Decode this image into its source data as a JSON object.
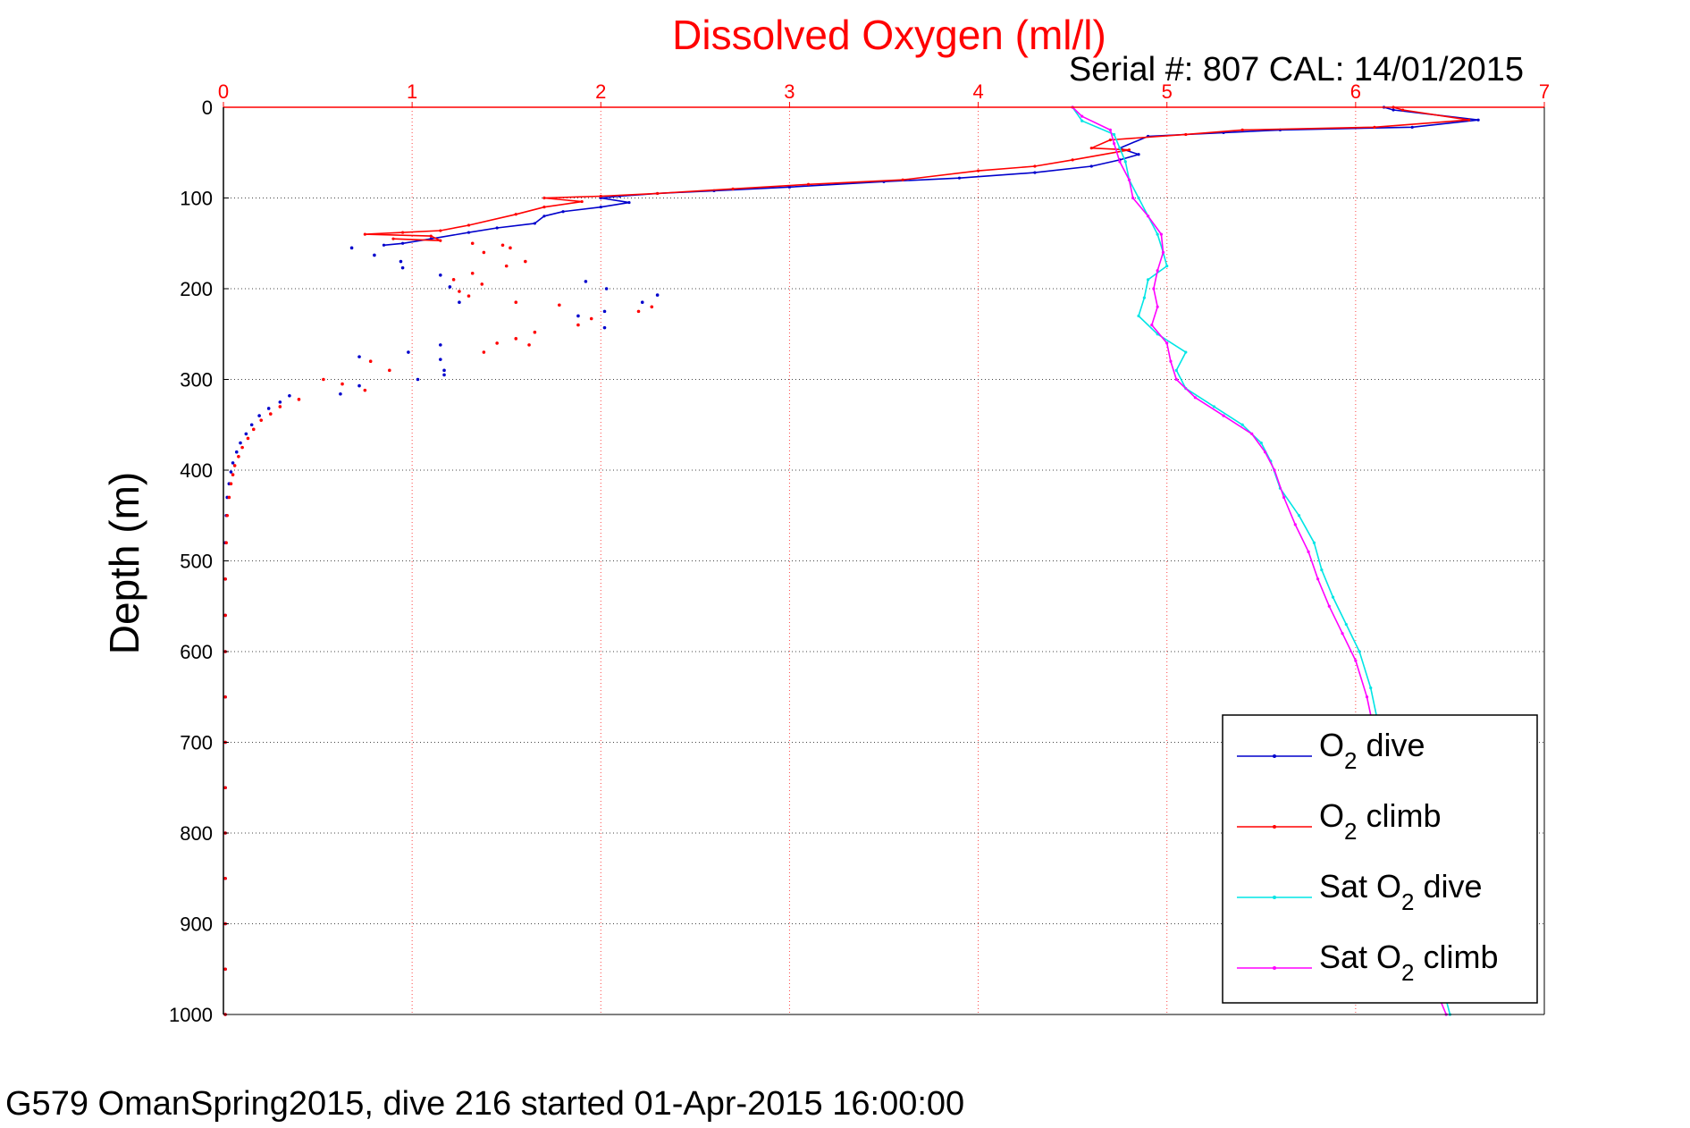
{
  "chart_data": {
    "type": "line",
    "title": "Dissolved Oxygen (ml/l)",
    "subtitle": "Serial #: 807  CAL: 14/01/2015",
    "ylabel": "Depth (m)",
    "footer": "G579 OmanSpring2015, dive 216 started 01-Apr-2015 16:00:00",
    "xlim": [
      0,
      7
    ],
    "ylim": [
      0,
      1000
    ],
    "y_reversed": true,
    "x_ticks": [
      "0",
      "1",
      "2",
      "3",
      "4",
      "5",
      "6",
      "7"
    ],
    "y_ticks": [
      "0",
      "100",
      "200",
      "300",
      "400",
      "500",
      "600",
      "700",
      "800",
      "900",
      "1000"
    ],
    "x_axis_position": "top",
    "grid": true,
    "legend_position": "bottom-right",
    "series": [
      {
        "name": "dive",
        "legend_prefix": "O",
        "legend_sub": "2",
        "color": "#0000cc",
        "points": [
          [
            6.15,
            0
          ],
          [
            6.2,
            3
          ],
          [
            6.65,
            14
          ],
          [
            6.3,
            22
          ],
          [
            5.6,
            25
          ],
          [
            5.3,
            28
          ],
          [
            4.9,
            32
          ],
          [
            4.75,
            45
          ],
          [
            4.85,
            52
          ],
          [
            4.75,
            58
          ],
          [
            4.6,
            65
          ],
          [
            4.3,
            72
          ],
          [
            3.9,
            78
          ],
          [
            3.5,
            82
          ],
          [
            3.0,
            88
          ],
          [
            2.6,
            92
          ],
          [
            2.3,
            95
          ],
          [
            2.1,
            98
          ],
          [
            2.0,
            100
          ],
          [
            2.15,
            105
          ],
          [
            2.0,
            110
          ],
          [
            1.8,
            115
          ],
          [
            1.7,
            120
          ],
          [
            1.65,
            128
          ],
          [
            1.45,
            133
          ],
          [
            1.3,
            138
          ],
          [
            1.1,
            145
          ],
          [
            0.95,
            150
          ],
          [
            0.85,
            152
          ]
        ],
        "scatter": [
          [
            0.68,
            155
          ],
          [
            0.8,
            163
          ],
          [
            0.94,
            170
          ],
          [
            0.95,
            177
          ],
          [
            1.15,
            185
          ],
          [
            1.2,
            198
          ],
          [
            1.25,
            215
          ],
          [
            1.92,
            192
          ],
          [
            2.03,
            200
          ],
          [
            2.3,
            207
          ],
          [
            2.22,
            215
          ],
          [
            2.02,
            225
          ],
          [
            1.88,
            230
          ],
          [
            2.02,
            243
          ],
          [
            1.15,
            262
          ],
          [
            0.98,
            270
          ],
          [
            1.15,
            278
          ],
          [
            0.72,
            275
          ],
          [
            1.17,
            290
          ],
          [
            1.17,
            295
          ],
          [
            1.03,
            300
          ],
          [
            0.72,
            307
          ],
          [
            0.62,
            316
          ],
          [
            0.35,
            318
          ],
          [
            0.3,
            325
          ],
          [
            0.24,
            332
          ],
          [
            0.19,
            340
          ],
          [
            0.15,
            350
          ],
          [
            0.12,
            360
          ],
          [
            0.09,
            370
          ],
          [
            0.07,
            380
          ],
          [
            0.05,
            392
          ],
          [
            0.04,
            402
          ],
          [
            0.03,
            415
          ],
          [
            0.02,
            430
          ],
          [
            0.015,
            450
          ],
          [
            0.01,
            480
          ],
          [
            0.01,
            520
          ],
          [
            0.01,
            560
          ],
          [
            0.01,
            600
          ],
          [
            0.01,
            650
          ],
          [
            0.01,
            700
          ],
          [
            0.01,
            750
          ],
          [
            0.01,
            800
          ],
          [
            0.01,
            850
          ],
          [
            0.01,
            900
          ],
          [
            0.01,
            950
          ],
          [
            0.01,
            1000
          ]
        ]
      },
      {
        "name": "climb",
        "legend_prefix": "O",
        "legend_sub": "2",
        "color": "#ff0000",
        "points": [
          [
            6.2,
            0
          ],
          [
            6.25,
            3
          ],
          [
            6.6,
            14
          ],
          [
            6.1,
            22
          ],
          [
            5.4,
            25
          ],
          [
            5.1,
            30
          ],
          [
            4.7,
            36
          ],
          [
            4.6,
            45
          ],
          [
            4.8,
            47
          ],
          [
            4.5,
            58
          ],
          [
            4.3,
            65
          ],
          [
            4.0,
            70
          ],
          [
            3.6,
            80
          ],
          [
            3.1,
            85
          ],
          [
            2.7,
            90
          ],
          [
            2.3,
            95
          ],
          [
            2.0,
            98
          ],
          [
            1.7,
            100
          ],
          [
            1.9,
            104
          ],
          [
            1.7,
            110
          ],
          [
            1.55,
            118
          ],
          [
            1.3,
            130
          ],
          [
            1.15,
            136
          ],
          [
            0.95,
            138
          ],
          [
            0.75,
            140
          ],
          [
            1.1,
            142
          ],
          [
            1.15,
            147
          ],
          [
            0.9,
            145
          ]
        ],
        "scatter": [
          [
            1.32,
            150
          ],
          [
            1.48,
            152
          ],
          [
            1.38,
            160
          ],
          [
            1.52,
            155
          ],
          [
            1.6,
            170
          ],
          [
            1.5,
            175
          ],
          [
            1.32,
            183
          ],
          [
            1.22,
            190
          ],
          [
            1.37,
            195
          ],
          [
            1.25,
            203
          ],
          [
            1.3,
            208
          ],
          [
            1.55,
            215
          ],
          [
            1.78,
            218
          ],
          [
            2.27,
            220
          ],
          [
            2.2,
            225
          ],
          [
            1.95,
            233
          ],
          [
            1.88,
            240
          ],
          [
            1.65,
            248
          ],
          [
            1.55,
            255
          ],
          [
            1.45,
            260
          ],
          [
            1.62,
            262
          ],
          [
            1.38,
            270
          ],
          [
            0.78,
            280
          ],
          [
            0.88,
            290
          ],
          [
            0.53,
            300
          ],
          [
            0.63,
            305
          ],
          [
            0.75,
            312
          ],
          [
            0.4,
            322
          ],
          [
            0.3,
            330
          ],
          [
            0.25,
            338
          ],
          [
            0.2,
            345
          ],
          [
            0.16,
            355
          ],
          [
            0.13,
            365
          ],
          [
            0.1,
            375
          ],
          [
            0.08,
            385
          ],
          [
            0.06,
            395
          ],
          [
            0.05,
            405
          ],
          [
            0.04,
            415
          ],
          [
            0.03,
            430
          ],
          [
            0.02,
            450
          ],
          [
            0.015,
            480
          ],
          [
            0.01,
            520
          ],
          [
            0.01,
            560
          ],
          [
            0.01,
            600
          ],
          [
            0.01,
            650
          ],
          [
            0.01,
            700
          ],
          [
            0.01,
            750
          ],
          [
            0.01,
            800
          ],
          [
            0.01,
            850
          ],
          [
            0.01,
            900
          ],
          [
            0.01,
            950
          ],
          [
            0.01,
            1000
          ]
        ]
      },
      {
        "name": "dive",
        "legend_prefix": "Sat O",
        "legend_sub": "2",
        "color": "#00e5e5",
        "points": [
          [
            4.5,
            0
          ],
          [
            4.55,
            15
          ],
          [
            4.72,
            30
          ],
          [
            4.75,
            45
          ],
          [
            4.78,
            60
          ],
          [
            4.8,
            80
          ],
          [
            4.85,
            100
          ],
          [
            4.9,
            120
          ],
          [
            4.95,
            140
          ],
          [
            4.98,
            160
          ],
          [
            5.0,
            175
          ],
          [
            4.9,
            190
          ],
          [
            4.88,
            210
          ],
          [
            4.85,
            230
          ],
          [
            4.95,
            250
          ],
          [
            5.1,
            270
          ],
          [
            5.05,
            290
          ],
          [
            5.1,
            310
          ],
          [
            5.25,
            330
          ],
          [
            5.4,
            350
          ],
          [
            5.5,
            370
          ],
          [
            5.55,
            390
          ],
          [
            5.6,
            420
          ],
          [
            5.7,
            450
          ],
          [
            5.78,
            480
          ],
          [
            5.82,
            510
          ],
          [
            5.88,
            540
          ],
          [
            5.95,
            570
          ],
          [
            6.02,
            600
          ],
          [
            6.08,
            640
          ],
          [
            6.12,
            680
          ],
          [
            6.18,
            720
          ],
          [
            6.22,
            760
          ],
          [
            6.25,
            800
          ],
          [
            6.3,
            840
          ],
          [
            6.35,
            880
          ],
          [
            6.38,
            920
          ],
          [
            6.45,
            960
          ],
          [
            6.5,
            1000
          ]
        ]
      },
      {
        "name": "climb",
        "legend_prefix": "Sat O",
        "legend_sub": "2",
        "color": "#ff00ff",
        "points": [
          [
            4.5,
            0
          ],
          [
            4.55,
            10
          ],
          [
            4.7,
            25
          ],
          [
            4.72,
            40
          ],
          [
            4.75,
            60
          ],
          [
            4.8,
            80
          ],
          [
            4.82,
            100
          ],
          [
            4.9,
            120
          ],
          [
            4.97,
            140
          ],
          [
            4.98,
            160
          ],
          [
            4.95,
            180
          ],
          [
            4.93,
            200
          ],
          [
            4.95,
            220
          ],
          [
            4.92,
            240
          ],
          [
            5.0,
            260
          ],
          [
            5.02,
            280
          ],
          [
            5.05,
            300
          ],
          [
            5.15,
            320
          ],
          [
            5.3,
            340
          ],
          [
            5.45,
            360
          ],
          [
            5.52,
            380
          ],
          [
            5.57,
            400
          ],
          [
            5.62,
            430
          ],
          [
            5.68,
            460
          ],
          [
            5.75,
            490
          ],
          [
            5.8,
            520
          ],
          [
            5.86,
            550
          ],
          [
            5.93,
            580
          ],
          [
            6.0,
            610
          ],
          [
            6.06,
            650
          ],
          [
            6.1,
            690
          ],
          [
            6.15,
            730
          ],
          [
            6.2,
            770
          ],
          [
            6.24,
            810
          ],
          [
            6.28,
            850
          ],
          [
            6.32,
            890
          ],
          [
            6.36,
            930
          ],
          [
            6.42,
            970
          ],
          [
            6.48,
            1000
          ]
        ]
      }
    ]
  }
}
